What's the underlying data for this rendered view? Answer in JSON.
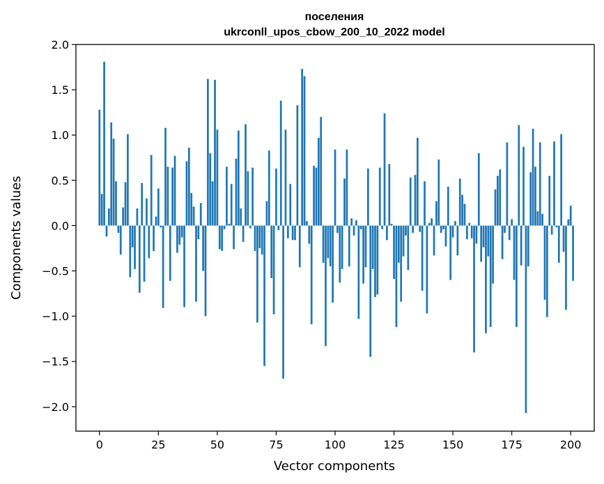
{
  "chart_data": {
    "type": "bar",
    "title_line1": "поселения",
    "title_line2": "ukrconll_upos_cbow_200_10_2022 model",
    "xlabel": "Vector components",
    "ylabel": "Components values",
    "xlim": [
      -10,
      210
    ],
    "ylim": [
      -2.27,
      2.0
    ],
    "xticks": [
      0,
      25,
      50,
      75,
      100,
      125,
      150,
      175,
      200
    ],
    "xtick_labels": [
      "0",
      "25",
      "50",
      "75",
      "100",
      "125",
      "150",
      "175",
      "200"
    ],
    "yticks": [
      2.0,
      1.5,
      1.0,
      0.5,
      0.0,
      -0.5,
      -1.0,
      -1.5,
      -2.0
    ],
    "ytick_labels": [
      "2.0",
      "1.5",
      "1.0",
      "0.5",
      "0.0",
      "−0.5",
      "−1.0",
      "−1.5",
      "−2.0"
    ],
    "bar_color": "#1f77b4",
    "grid": false,
    "values": [
      1.28,
      0.35,
      1.81,
      -0.12,
      0.19,
      1.14,
      0.96,
      0.49,
      -0.08,
      -0.32,
      0.2,
      0.48,
      1.01,
      -0.57,
      -0.24,
      -0.48,
      0.19,
      -0.74,
      0.47,
      -0.62,
      0.3,
      -0.36,
      0.78,
      -0.28,
      0.1,
      0.41,
      -0.02,
      -0.91,
      1.08,
      0.65,
      -0.61,
      0.64,
      0.77,
      -0.3,
      -0.21,
      -0.13,
      -0.9,
      0.71,
      0.86,
      0.36,
      0.21,
      -0.84,
      -0.15,
      0.25,
      -0.5,
      -1.0,
      1.62,
      0.8,
      0.49,
      1.61,
      1.06,
      -0.26,
      -0.28,
      -0.04,
      0.65,
      0.02,
      0.46,
      -0.26,
      0.74,
      1.05,
      0.19,
      -0.18,
      1.12,
      0.6,
      -0.03,
      0.64,
      -0.28,
      -1.07,
      -0.25,
      -0.32,
      -1.55,
      0.27,
      0.83,
      -0.58,
      -0.98,
      0.63,
      -0.05,
      1.38,
      -1.69,
      1.06,
      -0.14,
      0.46,
      -0.16,
      -0.16,
      1.33,
      -0.46,
      1.73,
      1.65,
      0.05,
      -0.2,
      -1.09,
      0.66,
      0.64,
      0.97,
      1.2,
      -0.41,
      -1.33,
      -0.36,
      -0.45,
      -0.85,
      0.84,
      -0.08,
      -0.63,
      -0.48,
      0.52,
      0.84,
      -0.45,
      0.08,
      -0.11,
      0.06,
      -1.03,
      -0.04,
      -0.64,
      -0.46,
      0.63,
      -1.45,
      -0.48,
      -0.79,
      -0.76,
      0.64,
      -0.04,
      1.24,
      -0.16,
      0.68,
      0.02,
      -0.59,
      -1.12,
      -0.41,
      -0.84,
      -0.34,
      -0.11,
      -0.49,
      0.53,
      -0.08,
      0.56,
      0.97,
      -0.07,
      -0.72,
      0.49,
      -0.97,
      0.03,
      0.08,
      -0.33,
      0.27,
      0.73,
      -0.08,
      -0.04,
      -0.23,
      0.43,
      -0.6,
      -0.13,
      0.05,
      -0.33,
      0.52,
      0.34,
      0.24,
      -0.15,
      0.03,
      -0.14,
      -1.4,
      -0.2,
      0.8,
      -0.4,
      -0.24,
      -1.19,
      -0.34,
      -1.12,
      -0.64,
      0.4,
      0.55,
      0.62,
      -0.37,
      -0.08,
      0.92,
      -0.16,
      0.07,
      -0.6,
      -1.12,
      1.11,
      -0.44,
      0.87,
      -2.07,
      -0.45,
      0.59,
      1.07,
      0.65,
      0.16,
      0.92,
      0.13,
      -0.82,
      -1.01,
      0.55,
      -0.1,
      0.93,
      -0.02,
      -0.41,
      1.01,
      -0.29,
      -0.93,
      0.07,
      0.22,
      -0.61
    ]
  }
}
